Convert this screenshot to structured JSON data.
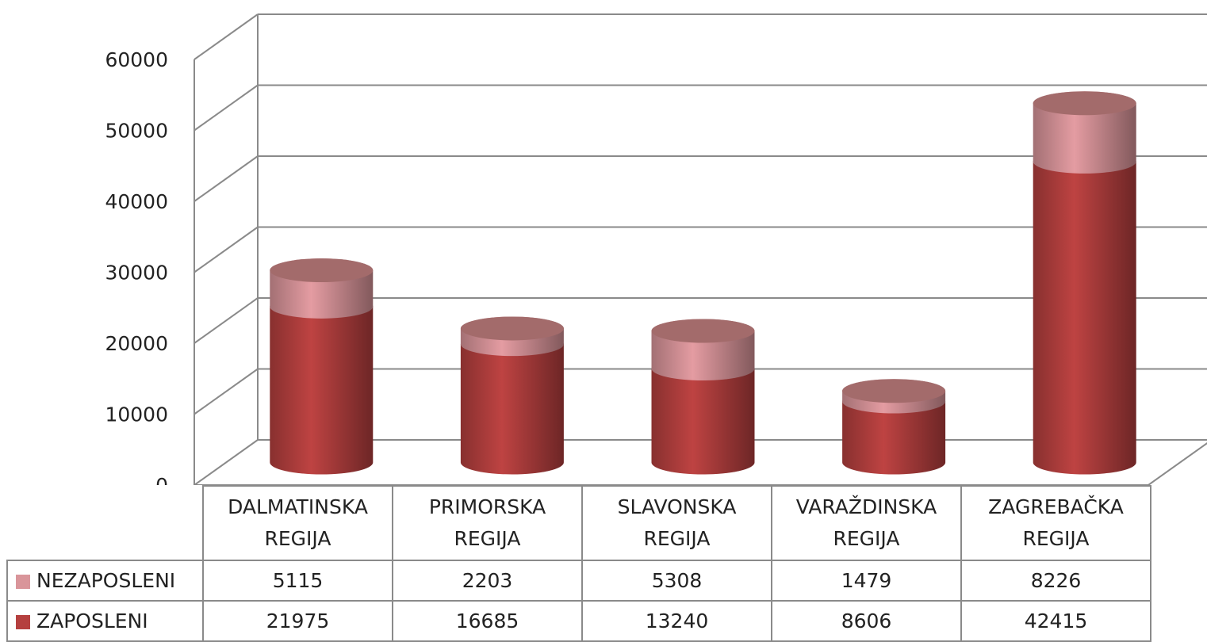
{
  "chart_data": {
    "type": "bar3d_stacked",
    "categories": [
      "DALMATINSKA REGIJA",
      "PRIMORSKA REGIJA",
      "SLAVONSKA REGIJA",
      "VARAŽDINSKA REGIJA",
      "ZAGREBAČKA REGIJA"
    ],
    "series": [
      {
        "name": "NEZAPOSLENI",
        "color": "#d9959a",
        "values": [
          5115,
          2203,
          5308,
          1479,
          8226
        ]
      },
      {
        "name": "ZAPOSLENI",
        "color": "#b5403f",
        "values": [
          21975,
          16685,
          13240,
          8606,
          42415
        ]
      }
    ],
    "ylim": [
      0,
      60000
    ],
    "yticks": [
      0,
      10000,
      20000,
      30000,
      40000,
      50000,
      60000
    ],
    "grid": true
  }
}
